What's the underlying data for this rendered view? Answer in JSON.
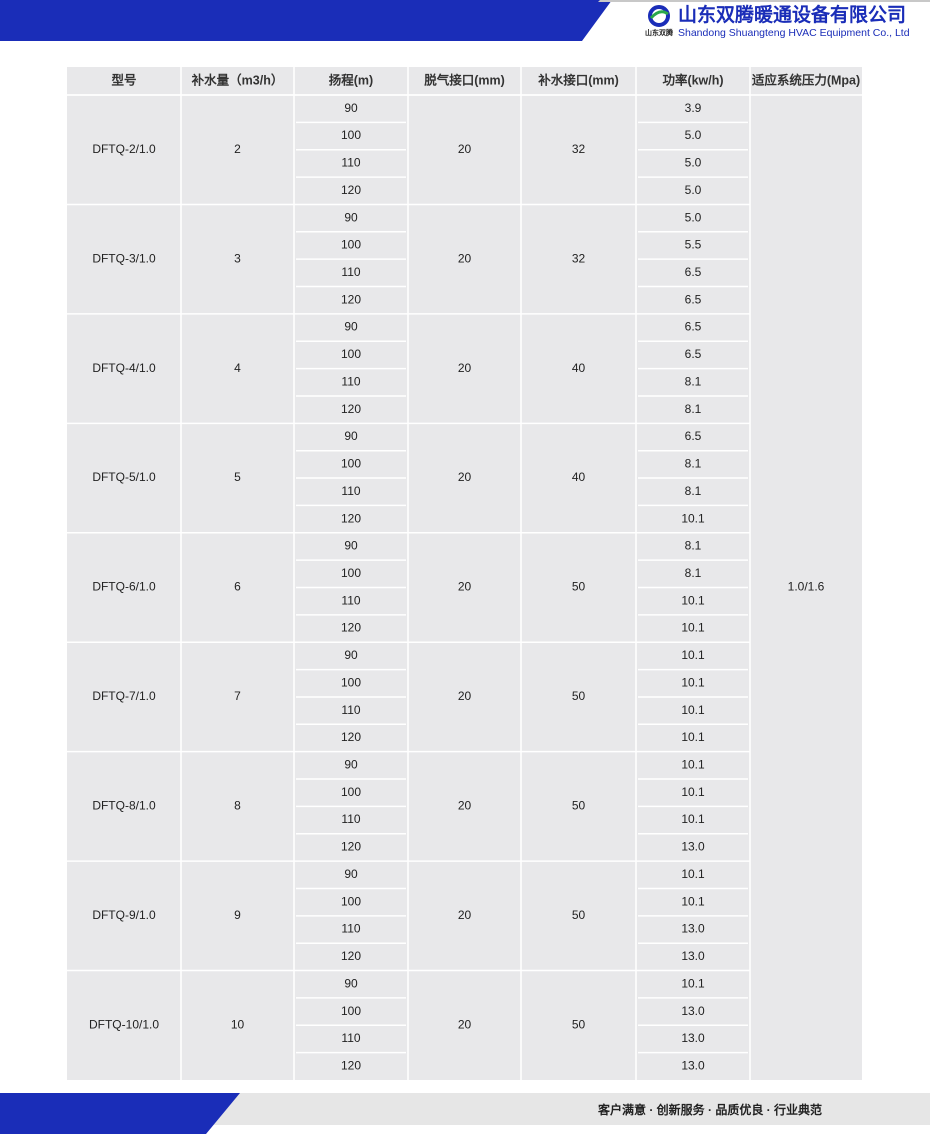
{
  "header": {
    "logo_text": "山东双腾",
    "company_cn": "山东双腾暖通设备有限公司",
    "company_en": "Shandong Shuangteng HVAC Equipment Co., Ltd"
  },
  "table": {
    "headers": [
      "型号",
      "补水量（m3/h）",
      "扬程(m)",
      "脱气接口(mm)",
      "补水接口(mm)",
      "功率(kw/h)",
      "适应系统压力(Mpa)"
    ],
    "pressure": "1.0/1.6",
    "groups": [
      {
        "model": "DFTQ-2/1.0",
        "flow": "2",
        "degas": "20",
        "makeup": "32",
        "heads": [
          "90",
          "100",
          "110",
          "120"
        ],
        "powers": [
          "3.9",
          "5.0",
          "5.0",
          "5.0"
        ]
      },
      {
        "model": "DFTQ-3/1.0",
        "flow": "3",
        "degas": "20",
        "makeup": "32",
        "heads": [
          "90",
          "100",
          "110",
          "120"
        ],
        "powers": [
          "5.0",
          "5.5",
          "6.5",
          "6.5"
        ]
      },
      {
        "model": "DFTQ-4/1.0",
        "flow": "4",
        "degas": "20",
        "makeup": "40",
        "heads": [
          "90",
          "100",
          "110",
          "120"
        ],
        "powers": [
          "6.5",
          "6.5",
          "8.1",
          "8.1"
        ]
      },
      {
        "model": "DFTQ-5/1.0",
        "flow": "5",
        "degas": "20",
        "makeup": "40",
        "heads": [
          "90",
          "100",
          "110",
          "120"
        ],
        "powers": [
          "6.5",
          "8.1",
          "8.1",
          "10.1"
        ]
      },
      {
        "model": "DFTQ-6/1.0",
        "flow": "6",
        "degas": "20",
        "makeup": "50",
        "heads": [
          "90",
          "100",
          "110",
          "120"
        ],
        "powers": [
          "8.1",
          "8.1",
          "10.1",
          "10.1"
        ]
      },
      {
        "model": "DFTQ-7/1.0",
        "flow": "7",
        "degas": "20",
        "makeup": "50",
        "heads": [
          "90",
          "100",
          "110",
          "120"
        ],
        "powers": [
          "10.1",
          "10.1",
          "10.1",
          "10.1"
        ]
      },
      {
        "model": "DFTQ-8/1.0",
        "flow": "8",
        "degas": "20",
        "makeup": "50",
        "heads": [
          "90",
          "100",
          "110",
          "120"
        ],
        "powers": [
          "10.1",
          "10.1",
          "10.1",
          "13.0"
        ]
      },
      {
        "model": "DFTQ-9/1.0",
        "flow": "9",
        "degas": "20",
        "makeup": "50",
        "heads": [
          "90",
          "100",
          "110",
          "120"
        ],
        "powers": [
          "10.1",
          "10.1",
          "13.0",
          "13.0"
        ]
      },
      {
        "model": "DFTQ-10/1.0",
        "flow": "10",
        "degas": "20",
        "makeup": "50",
        "heads": [
          "90",
          "100",
          "110",
          "120"
        ],
        "powers": [
          "10.1",
          "13.0",
          "13.0",
          "13.0"
        ]
      }
    ]
  },
  "footer": {
    "slogan": "客户满意 · 创新服务 · 品质优良 · 行业典范"
  }
}
